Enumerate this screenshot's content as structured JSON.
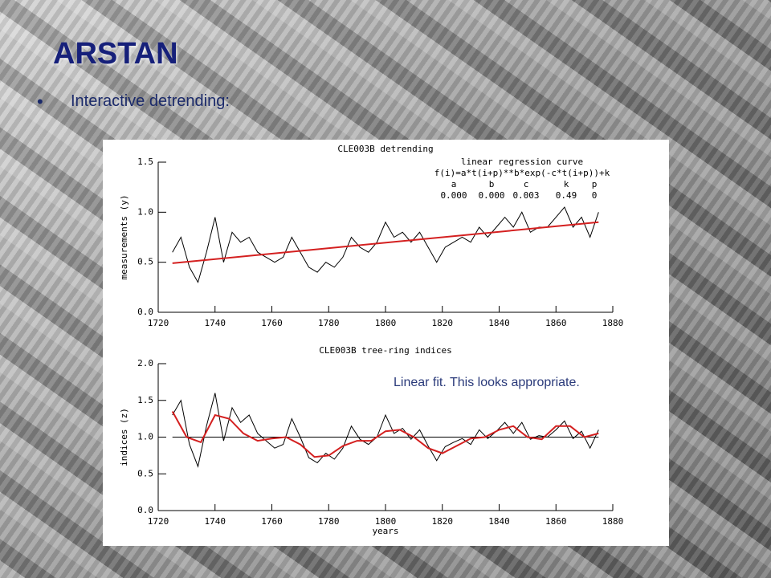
{
  "slide": {
    "title": "ARSTAN",
    "bullet": "Interactive detrending:"
  },
  "chart_data": [
    {
      "type": "line",
      "title": "CLE003B detrending",
      "ylabel": "measurements (y)",
      "xlim": [
        1720,
        1880
      ],
      "xticks": [
        1720,
        1740,
        1760,
        1780,
        1800,
        1820,
        1840,
        1860,
        1880
      ],
      "ylim": [
        0,
        1.5
      ],
      "yticks": [
        {
          "value": 0,
          "label": "0.0"
        },
        {
          "value": 0.5,
          "label": "0.5"
        },
        {
          "value": 1,
          "label": "1.0"
        },
        {
          "value": 1.5,
          "label": "1.5"
        }
      ],
      "annotations": [
        "linear regression curve",
        "f(i)=a*t(i+p)**b*exp(-c*t(i+p))+k"
      ],
      "params": [
        {
          "name": "a",
          "value": "0.000"
        },
        {
          "name": "b",
          "value": "0.000"
        },
        {
          "name": "c",
          "value": "0.003"
        },
        {
          "name": "k",
          "value": "0.49"
        },
        {
          "name": "p",
          "value": "0"
        }
      ],
      "series": [
        {
          "color": "#000000",
          "x": [
            1725,
            1728,
            1731,
            1734,
            1737,
            1740,
            1743,
            1746,
            1749,
            1752,
            1755,
            1758,
            1761,
            1764,
            1767,
            1770,
            1773,
            1776,
            1779,
            1782,
            1785,
            1788,
            1791,
            1794,
            1797,
            1800,
            1803,
            1806,
            1809,
            1812,
            1815,
            1818,
            1821,
            1824,
            1827,
            1830,
            1833,
            1836,
            1839,
            1842,
            1845,
            1848,
            1851,
            1854,
            1857,
            1860,
            1863,
            1866,
            1869,
            1872,
            1875
          ],
          "values": [
            0.6,
            0.75,
            0.45,
            0.3,
            0.6,
            0.95,
            0.5,
            0.8,
            0.7,
            0.75,
            0.6,
            0.55,
            0.5,
            0.55,
            0.75,
            0.6,
            0.45,
            0.4,
            0.5,
            0.45,
            0.55,
            0.75,
            0.65,
            0.6,
            0.7,
            0.9,
            0.75,
            0.8,
            0.7,
            0.8,
            0.65,
            0.5,
            0.65,
            0.7,
            0.75,
            0.7,
            0.85,
            0.75,
            0.85,
            0.95,
            0.85,
            1.0,
            0.8,
            0.85,
            0.85,
            0.95,
            1.05,
            0.85,
            0.95,
            0.75,
            1.0
          ]
        },
        {
          "color": "#d42020",
          "x": [
            1725,
            1875
          ],
          "values": [
            0.49,
            0.9
          ]
        }
      ]
    },
    {
      "type": "line",
      "title": "CLE003B tree-ring indices",
      "ylabel": "indices (z)",
      "xlabel": "years",
      "xlim": [
        1720,
        1880
      ],
      "xticks": [
        1720,
        1740,
        1760,
        1780,
        1800,
        1820,
        1840,
        1860,
        1880
      ],
      "ylim": [
        0,
        2
      ],
      "yticks": [
        {
          "value": 0,
          "label": "0.0"
        },
        {
          "value": 0.5,
          "label": "0.5"
        },
        {
          "value": 1,
          "label": "1.0"
        },
        {
          "value": 1.5,
          "label": "1.5"
        },
        {
          "value": 2,
          "label": "2.0"
        }
      ],
      "hline": 1,
      "note": "Linear fit. This looks appropriate.",
      "series": [
        {
          "color": "#000000",
          "x": [
            1725,
            1728,
            1731,
            1734,
            1737,
            1740,
            1743,
            1746,
            1749,
            1752,
            1755,
            1758,
            1761,
            1764,
            1767,
            1770,
            1773,
            1776,
            1779,
            1782,
            1785,
            1788,
            1791,
            1794,
            1797,
            1800,
            1803,
            1806,
            1809,
            1812,
            1815,
            1818,
            1821,
            1824,
            1827,
            1830,
            1833,
            1836,
            1839,
            1842,
            1845,
            1848,
            1851,
            1854,
            1857,
            1860,
            1863,
            1866,
            1869,
            1872,
            1875
          ],
          "values": [
            1.3,
            1.5,
            0.9,
            0.6,
            1.15,
            1.6,
            0.95,
            1.4,
            1.2,
            1.3,
            1.05,
            0.95,
            0.85,
            0.9,
            1.25,
            1.0,
            0.72,
            0.65,
            0.78,
            0.7,
            0.85,
            1.15,
            0.97,
            0.9,
            1.0,
            1.3,
            1.05,
            1.12,
            0.97,
            1.1,
            0.88,
            0.68,
            0.87,
            0.93,
            0.98,
            0.9,
            1.1,
            0.98,
            1.08,
            1.2,
            1.05,
            1.2,
            0.97,
            1.02,
            1.0,
            1.1,
            1.22,
            0.98,
            1.08,
            0.85,
            1.1
          ]
        },
        {
          "color": "#d42020",
          "x": [
            1725,
            1730,
            1735,
            1740,
            1745,
            1750,
            1755,
            1760,
            1765,
            1770,
            1775,
            1780,
            1785,
            1790,
            1795,
            1800,
            1805,
            1810,
            1815,
            1820,
            1825,
            1830,
            1835,
            1840,
            1845,
            1850,
            1855,
            1860,
            1865,
            1870,
            1875
          ],
          "values": [
            1.35,
            1.0,
            0.93,
            1.3,
            1.25,
            1.05,
            0.95,
            0.98,
            1.0,
            0.9,
            0.73,
            0.75,
            0.88,
            0.95,
            0.95,
            1.08,
            1.1,
            1.0,
            0.85,
            0.78,
            0.88,
            0.98,
            1.0,
            1.1,
            1.15,
            1.0,
            0.97,
            1.15,
            1.15,
            1.0,
            1.05
          ]
        }
      ]
    }
  ]
}
